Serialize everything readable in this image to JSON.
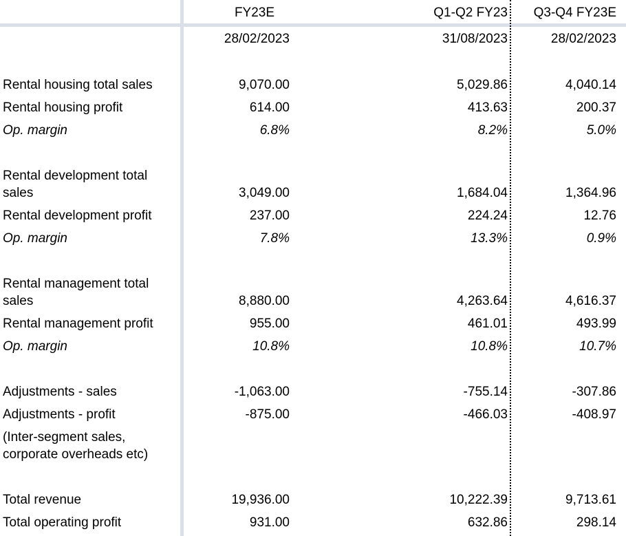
{
  "headers": {
    "col1": "FY23E",
    "col2": "Q1-Q2 FY23",
    "col3": "Q3-Q4 FY23E"
  },
  "dates": {
    "col1": "28/02/2023",
    "col2": "31/08/2023",
    "col3": "28/02/2023"
  },
  "rows": {
    "rh_sales": {
      "label": "Rental housing total sales",
      "v1": "9,070.00",
      "v2": "5,029.86",
      "v3": "4,040.14"
    },
    "rh_profit": {
      "label": "Rental housing profit",
      "v1": "614.00",
      "v2": "413.63",
      "v3": "200.37"
    },
    "rh_margin": {
      "label": "Op. margin",
      "v1": "6.8%",
      "v2": "8.2%",
      "v3": "5.0%"
    },
    "rd_sales": {
      "label": "Rental development total sales",
      "v1": "3,049.00",
      "v2": "1,684.04",
      "v3": "1,364.96"
    },
    "rd_profit": {
      "label": "Rental development profit",
      "v1": "237.00",
      "v2": "224.24",
      "v3": "12.76"
    },
    "rd_margin": {
      "label": "Op. margin",
      "v1": "7.8%",
      "v2": "13.3%",
      "v3": "0.9%"
    },
    "rm_sales": {
      "label": "Rental management total sales",
      "v1": "8,880.00",
      "v2": "4,263.64",
      "v3": "4,616.37"
    },
    "rm_profit": {
      "label": "Rental management profit",
      "v1": "955.00",
      "v2": "461.01",
      "v3": "493.99"
    },
    "rm_margin": {
      "label": "Op. margin",
      "v1": "10.8%",
      "v2": "10.8%",
      "v3": "10.7%"
    },
    "adj_sales": {
      "label": "Adjustments - sales",
      "v1": "-1,063.00",
      "v2": "-755.14",
      "v3": "-307.86"
    },
    "adj_profit": {
      "label": "Adjustments - profit",
      "v1": "-875.00",
      "v2": "-466.03",
      "v3": "-408.97"
    },
    "adj_note": {
      "label": "(Inter-segment sales, corporate overheads etc)"
    },
    "total_rev": {
      "label": "Total revenue",
      "v1": "19,936.00",
      "v2": "10,222.39",
      "v3": "9,713.61"
    },
    "total_op": {
      "label": "Total operating profit",
      "v1": "931.00",
      "v2": "632.86",
      "v3": "298.14"
    }
  }
}
